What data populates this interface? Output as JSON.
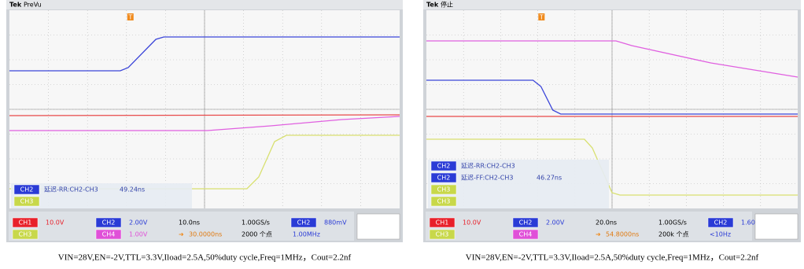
{
  "scopes": [
    {
      "brand": "Tek",
      "status": "PreVu",
      "trigger_marker": "T",
      "measurements": [
        {
          "channel": "CH2",
          "label": "延迟-RR:CH2-CH3",
          "value": "49.24ns"
        },
        {
          "channel": "CH3"
        }
      ],
      "settings": {
        "channels": [
          {
            "channel": "CH1",
            "scale": "10.0V"
          },
          {
            "channel": "CH2",
            "scale": "2.00V"
          },
          {
            "channel": "CH3"
          },
          {
            "channel": "CH4",
            "scale": "1.00V"
          }
        ],
        "timebase": "10.0ns",
        "sample_rate": "1.00GS/s",
        "trigger": {
          "channel": "CH2",
          "level": "880mV"
        },
        "position": "30.0000ns",
        "record_length": "2000 个点",
        "frequency": "1.00MHz"
      }
    },
    {
      "brand": "Tek",
      "status": "停止",
      "trigger_marker": "T",
      "measurements": [
        {
          "channel": "CH2",
          "label": "延迟-RR:CH2-CH3"
        },
        {
          "channel": "CH2",
          "label": "延迟-FF:CH2-CH3",
          "value": "46.27ns"
        },
        {
          "channel": "CH3"
        },
        {
          "channel": "CH3"
        }
      ],
      "settings": {
        "channels": [
          {
            "channel": "CH1",
            "scale": "10.0V"
          },
          {
            "channel": "CH2",
            "scale": "2.00V"
          },
          {
            "channel": "CH3"
          },
          {
            "channel": "CH4"
          }
        ],
        "timebase": "20.0ns",
        "sample_rate": "1.00GS/s",
        "trigger": {
          "channel": "CH2",
          "level": "1.60V"
        },
        "position": "54.8000ns",
        "record_length": "200k 个点",
        "frequency": "<10Hz"
      }
    }
  ],
  "captions": [
    "VIN=28V,EN=-2V,TTL=3.3V,Iload=2.5A,50%duty cycle,Freq=1MHz，Cout=2.2nf",
    "VIN=28V,EN=-2V,TTL=3.3V,Iload=2.5A,50%duty cycle,Freq=1MHz，Cout=2.2nf"
  ]
}
